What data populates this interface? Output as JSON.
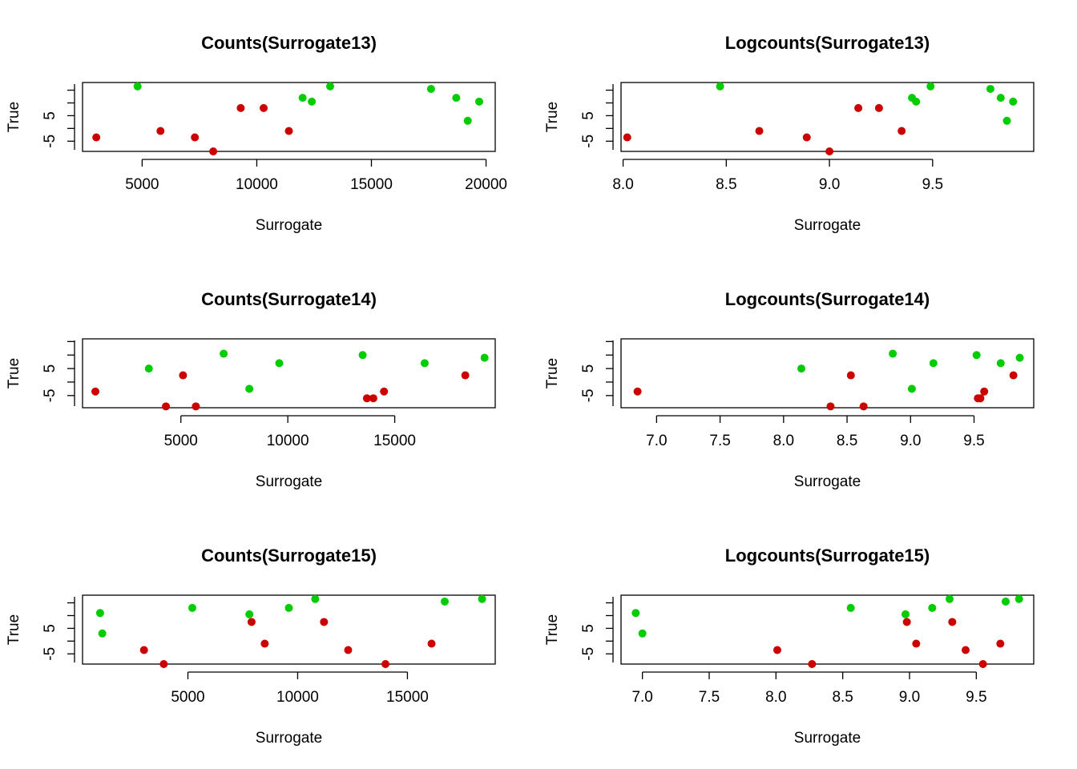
{
  "colors": {
    "red": "#CD0000",
    "green": "#00CD00"
  },
  "chart_data": [
    {
      "type": "scatter",
      "title": "Counts(Surrogate13)",
      "xlabel": "Surrogate",
      "ylabel": "True",
      "xlim": [
        2400,
        20400
      ],
      "ylim": [
        -9,
        18
      ],
      "xticks": [
        5000,
        10000,
        15000,
        20000
      ],
      "yticks": [
        -5,
        5
      ],
      "grid": false,
      "red_points": [
        [
          3000,
          -3.5
        ],
        [
          5800,
          -1
        ],
        [
          7300,
          -3.5
        ],
        [
          8100,
          -9
        ],
        [
          9300,
          8
        ],
        [
          10300,
          8
        ],
        [
          11400,
          -1
        ]
      ],
      "green_points": [
        [
          4800,
          16.5
        ],
        [
          12000,
          12
        ],
        [
          12400,
          10.5
        ],
        [
          13200,
          16.5
        ],
        [
          17600,
          15.5
        ],
        [
          18700,
          12
        ],
        [
          19200,
          3
        ],
        [
          19700,
          10.5
        ]
      ]
    },
    {
      "type": "scatter",
      "title": "Logcounts(Surrogate13)",
      "xlabel": "Surrogate",
      "ylabel": "True",
      "xlim": [
        7.99,
        9.99
      ],
      "ylim": [
        -9,
        18
      ],
      "xticks": [
        8.0,
        8.5,
        9.0,
        9.5
      ],
      "yticks": [
        -5,
        5
      ],
      "grid": false,
      "red_points": [
        [
          8.02,
          -3.5
        ],
        [
          8.66,
          -1
        ],
        [
          8.89,
          -3.5
        ],
        [
          9.0,
          -9
        ],
        [
          9.14,
          8
        ],
        [
          9.24,
          8
        ],
        [
          9.35,
          -1
        ]
      ],
      "green_points": [
        [
          8.47,
          16.5
        ],
        [
          9.4,
          12
        ],
        [
          9.42,
          10.5
        ],
        [
          9.49,
          16.5
        ],
        [
          9.78,
          15.5
        ],
        [
          9.83,
          12
        ],
        [
          9.86,
          3
        ],
        [
          9.89,
          10.5
        ]
      ]
    },
    {
      "type": "scatter",
      "title": "Counts(Surrogate14)",
      "xlabel": "Surrogate",
      "ylabel": "True",
      "xlim": [
        400,
        19700
      ],
      "ylim": [
        -9.5,
        16
      ],
      "xticks": [
        5000,
        10000,
        15000
      ],
      "yticks": [
        -5,
        5
      ],
      "grid": false,
      "red_points": [
        [
          1000,
          -3.5
        ],
        [
          4300,
          -9
        ],
        [
          5100,
          2.5
        ],
        [
          5700,
          -9
        ],
        [
          13700,
          -6
        ],
        [
          14000,
          -6
        ],
        [
          14500,
          -3.5
        ],
        [
          18300,
          2.5
        ]
      ],
      "green_points": [
        [
          3500,
          5
        ],
        [
          7000,
          10.5
        ],
        [
          8200,
          -2.5
        ],
        [
          9600,
          7
        ],
        [
          13500,
          10
        ],
        [
          16400,
          7
        ],
        [
          19200,
          9
        ]
      ]
    },
    {
      "type": "scatter",
      "title": "Logcounts(Surrogate14)",
      "xlabel": "Surrogate",
      "ylabel": "True",
      "xlim": [
        6.72,
        9.97
      ],
      "ylim": [
        -9.5,
        16
      ],
      "xticks": [
        7.0,
        7.5,
        8.0,
        8.5,
        9.0,
        9.5
      ],
      "yticks": [
        -5,
        5
      ],
      "grid": false,
      "red_points": [
        [
          6.85,
          -3.5
        ],
        [
          8.37,
          -9
        ],
        [
          8.53,
          2.5
        ],
        [
          8.63,
          -9
        ],
        [
          9.53,
          -6
        ],
        [
          9.55,
          -6
        ],
        [
          9.58,
          -3.5
        ],
        [
          9.81,
          2.5
        ]
      ],
      "green_points": [
        [
          8.14,
          5
        ],
        [
          8.86,
          10.5
        ],
        [
          9.01,
          -2.5
        ],
        [
          9.18,
          7
        ],
        [
          9.52,
          10
        ],
        [
          9.71,
          7
        ],
        [
          9.86,
          9
        ]
      ]
    },
    {
      "type": "scatter",
      "title": "Counts(Surrogate15)",
      "xlabel": "Surrogate",
      "ylabel": "True",
      "xlim": [
        200,
        19000
      ],
      "ylim": [
        -9,
        18
      ],
      "xticks": [
        5000,
        10000,
        15000
      ],
      "yticks": [
        -5,
        5
      ],
      "grid": false,
      "red_points": [
        [
          3000,
          -3.5
        ],
        [
          3900,
          -9
        ],
        [
          7900,
          7.5
        ],
        [
          8500,
          -1
        ],
        [
          11200,
          7.5
        ],
        [
          12300,
          -3.5
        ],
        [
          14000,
          -9
        ],
        [
          16100,
          -1
        ]
      ],
      "green_points": [
        [
          1000,
          11
        ],
        [
          1100,
          3
        ],
        [
          5200,
          13
        ],
        [
          7800,
          10.5
        ],
        [
          9600,
          13
        ],
        [
          10800,
          16.5
        ],
        [
          16700,
          15.5
        ],
        [
          18400,
          16.5
        ]
      ]
    },
    {
      "type": "scatter",
      "title": "Logcounts(Surrogate15)",
      "xlabel": "Surrogate",
      "ylabel": "True",
      "xlim": [
        6.84,
        9.93
      ],
      "ylim": [
        -9,
        18
      ],
      "xticks": [
        7.0,
        7.5,
        8.0,
        8.5,
        9.0,
        9.5
      ],
      "yticks": [
        -5,
        5
      ],
      "grid": false,
      "red_points": [
        [
          8.01,
          -3.5
        ],
        [
          8.27,
          -9
        ],
        [
          8.98,
          7.5
        ],
        [
          9.05,
          -1
        ],
        [
          9.32,
          7.5
        ],
        [
          9.42,
          -3.5
        ],
        [
          9.55,
          -9
        ],
        [
          9.68,
          -1
        ]
      ],
      "green_points": [
        [
          6.95,
          11
        ],
        [
          7.0,
          3
        ],
        [
          8.56,
          13
        ],
        [
          8.97,
          10.5
        ],
        [
          9.17,
          13
        ],
        [
          9.3,
          16.5
        ],
        [
          9.72,
          15.5
        ],
        [
          9.82,
          16.5
        ]
      ]
    }
  ]
}
